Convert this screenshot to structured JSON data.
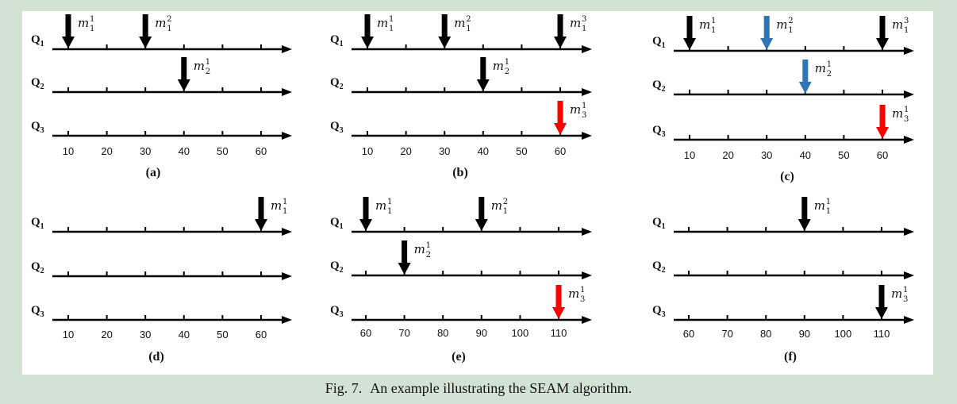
{
  "caption": {
    "label": "Fig. 7.",
    "text": "An example illustrating the SEAM algorithm."
  },
  "colors": {
    "background": "#d3e3d3",
    "panel": "#ffffff",
    "black_arrow": "#000000",
    "blue_arrow": "#2e75b6",
    "red_arrow": "#ff0000"
  },
  "panels": [
    {
      "label": "(a)",
      "ticks": [
        10,
        20,
        30,
        40,
        50,
        60
      ],
      "rows": [
        "Q1",
        "Q2",
        "Q3"
      ],
      "markers": [
        {
          "row": 0,
          "x": 10,
          "name": "m",
          "sub": "1",
          "sup": "1",
          "color": "black"
        },
        {
          "row": 0,
          "x": 30,
          "name": "m",
          "sub": "1",
          "sup": "2",
          "color": "black"
        },
        {
          "row": 1,
          "x": 40,
          "name": "m",
          "sub": "2",
          "sup": "1",
          "color": "black"
        }
      ]
    },
    {
      "label": "(b)",
      "ticks": [
        10,
        20,
        30,
        40,
        50,
        60
      ],
      "rows": [
        "Q1",
        "Q2",
        "Q3"
      ],
      "markers": [
        {
          "row": 0,
          "x": 10,
          "name": "m",
          "sub": "1",
          "sup": "1",
          "color": "black"
        },
        {
          "row": 0,
          "x": 30,
          "name": "m",
          "sub": "1",
          "sup": "2",
          "color": "black"
        },
        {
          "row": 0,
          "x": 60,
          "name": "m",
          "sub": "1",
          "sup": "3",
          "color": "black"
        },
        {
          "row": 1,
          "x": 40,
          "name": "m",
          "sub": "2",
          "sup": "1",
          "color": "black"
        },
        {
          "row": 2,
          "x": 60,
          "name": "m",
          "sub": "3",
          "sup": "1",
          "color": "red"
        }
      ]
    },
    {
      "label": "(c)",
      "ticks": [
        10,
        20,
        30,
        40,
        50,
        60
      ],
      "rows": [
        "Q1",
        "Q2",
        "Q3"
      ],
      "markers": [
        {
          "row": 0,
          "x": 10,
          "name": "m",
          "sub": "1",
          "sup": "1",
          "color": "black"
        },
        {
          "row": 0,
          "x": 30,
          "name": "m",
          "sub": "1",
          "sup": "2",
          "color": "blue"
        },
        {
          "row": 0,
          "x": 60,
          "name": "m",
          "sub": "1",
          "sup": "3",
          "color": "black"
        },
        {
          "row": 1,
          "x": 40,
          "name": "m",
          "sub": "2",
          "sup": "1",
          "color": "blue"
        },
        {
          "row": 2,
          "x": 60,
          "name": "m",
          "sub": "3",
          "sup": "1",
          "color": "red"
        }
      ]
    },
    {
      "label": "(d)",
      "ticks": [
        10,
        20,
        30,
        40,
        50,
        60
      ],
      "rows": [
        "Q1",
        "Q2",
        "Q3"
      ],
      "markers": [
        {
          "row": 0,
          "x": 60,
          "name": "m",
          "sub": "1",
          "sup": "1",
          "color": "black"
        }
      ]
    },
    {
      "label": "(e)",
      "ticks": [
        60,
        70,
        80,
        90,
        100,
        110
      ],
      "rows": [
        "Q1",
        "Q2",
        "Q3"
      ],
      "markers": [
        {
          "row": 0,
          "x": 60,
          "name": "m",
          "sub": "1",
          "sup": "1",
          "color": "black"
        },
        {
          "row": 0,
          "x": 90,
          "name": "m",
          "sub": "1",
          "sup": "2",
          "color": "black"
        },
        {
          "row": 1,
          "x": 70,
          "name": "m",
          "sub": "2",
          "sup": "1",
          "color": "black"
        },
        {
          "row": 2,
          "x": 110,
          "name": "m",
          "sub": "3",
          "sup": "1",
          "color": "red"
        }
      ]
    },
    {
      "label": "(f)",
      "ticks": [
        60,
        70,
        80,
        90,
        100,
        110
      ],
      "rows": [
        "Q1",
        "Q2",
        "Q3"
      ],
      "markers": [
        {
          "row": 0,
          "x": 90,
          "name": "m",
          "sub": "1",
          "sup": "1",
          "color": "black"
        },
        {
          "row": 2,
          "x": 110,
          "name": "m",
          "sub": "3",
          "sup": "1",
          "color": "black"
        }
      ]
    }
  ]
}
